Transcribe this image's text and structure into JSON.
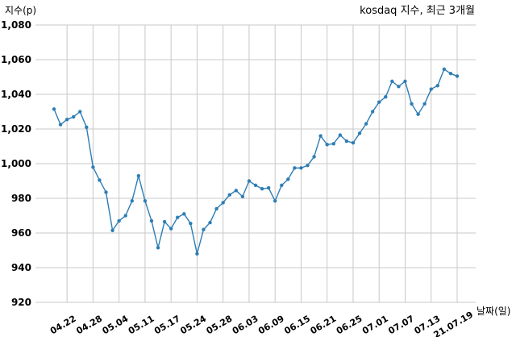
{
  "chart_data": {
    "type": "line",
    "title": "kosdaq 지수, 최근 3개월",
    "xlabel": "날짜(일)",
    "ylabel": "지수(p)",
    "ylim": [
      920,
      1080
    ],
    "yticks": [
      920,
      940,
      960,
      980,
      1000,
      1020,
      1040,
      1060,
      1080
    ],
    "ytick_labels": [
      "920",
      "940",
      "960",
      "980",
      "1,000",
      "1,020",
      "1,040",
      "1,060",
      "1,080"
    ],
    "xtick_labels": [
      "04.22",
      "04.28",
      "05.04",
      "05.11",
      "05.17",
      "05.24",
      "05.28",
      "06.03",
      "06.09",
      "06.15",
      "06.21",
      "06.25",
      "07.01",
      "07.07",
      "07.13",
      "21.07.19"
    ],
    "xtick_index": [
      2,
      6,
      10,
      14,
      18,
      22,
      26,
      30,
      34,
      38,
      42,
      46,
      50,
      54,
      58,
      62
    ],
    "grid": true,
    "values": [
      1031.5,
      1022.5,
      1025.5,
      1027,
      1030,
      1021,
      998,
      990.5,
      983.5,
      961.5,
      967,
      970,
      978.5,
      993,
      978.5,
      967,
      951.5,
      966.5,
      962.5,
      969,
      971,
      965.5,
      948,
      962,
      966,
      974,
      977.5,
      982,
      984.5,
      981,
      990,
      987.5,
      985.5,
      986,
      978.5,
      987.5,
      991,
      997.5,
      997.5,
      999,
      1004,
      1016,
      1011,
      1011.5,
      1016.5,
      1013,
      1012,
      1017.5,
      1023,
      1030,
      1035.5,
      1038.5,
      1047.5,
      1044.5,
      1047.5,
      1034.5,
      1028.5,
      1034.5,
      1043,
      1045,
      1054.5,
      1052,
      1050.5
    ]
  }
}
